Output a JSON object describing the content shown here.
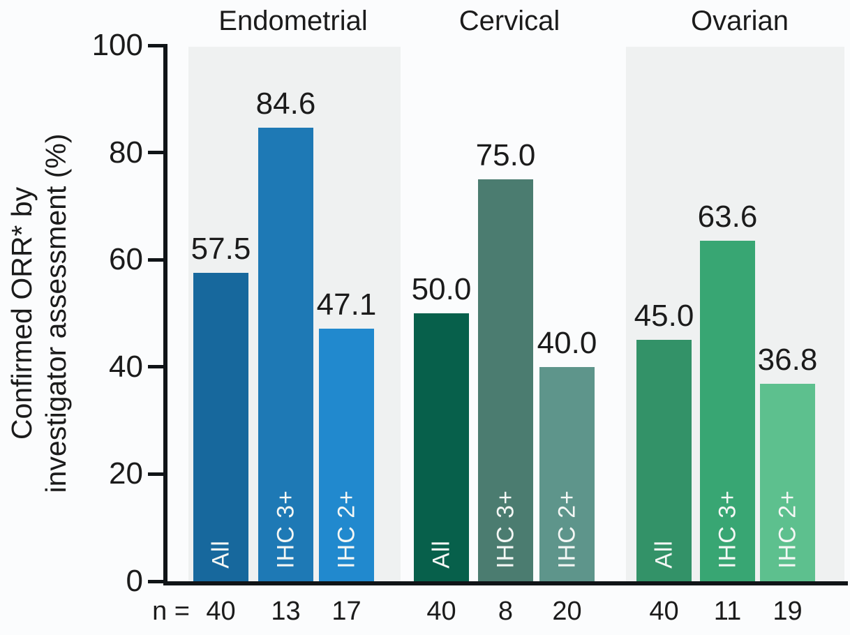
{
  "chart_data": {
    "type": "bar",
    "title": "",
    "ylabel_lines": [
      "Confirmed ORR* by",
      "investigator assessment (%)"
    ],
    "ylabel": "Confirmed ORR* by investigator assessment (%)",
    "ylim": [
      0,
      100
    ],
    "yticks": [
      0,
      20,
      40,
      60,
      80,
      100
    ],
    "grid": false,
    "legend": "none",
    "n_prefix": "n =",
    "bar_label_text_color": "#f4f7f5",
    "axis_color": "#101417",
    "shaded_panel_color": "#eff1f1",
    "groups": [
      {
        "name": "Endometrial",
        "shaded": true,
        "bars": [
          {
            "label": "All",
            "value": 57.5,
            "n": 40,
            "color": "#17689d"
          },
          {
            "label": "IHC 3+",
            "value": 84.6,
            "n": 13,
            "color": "#1e79b5"
          },
          {
            "label": "IHC 2+",
            "value": 47.1,
            "n": 17,
            "color": "#2189ce"
          }
        ]
      },
      {
        "name": "Cervical",
        "shaded": false,
        "bars": [
          {
            "label": "All",
            "value": 50.0,
            "n": 40,
            "color": "#07604b"
          },
          {
            "label": "IHC 3+",
            "value": 75.0,
            "n": 8,
            "color": "#4b7c70"
          },
          {
            "label": "IHC 2+",
            "value": 40.0,
            "n": 20,
            "color": "#5e958b"
          }
        ]
      },
      {
        "name": "Ovarian",
        "shaded": true,
        "bars": [
          {
            "label": "All",
            "value": 45.0,
            "n": 40,
            "color": "#339268"
          },
          {
            "label": "IHC 3+",
            "value": 63.6,
            "n": 11,
            "color": "#38a673"
          },
          {
            "label": "IHC 2+",
            "value": 36.8,
            "n": 19,
            "color": "#5dc08e"
          }
        ]
      }
    ],
    "value_labels": [
      57.5,
      84.6,
      47.1,
      50.0,
      75.0,
      40.0,
      45.0,
      63.6,
      36.8
    ],
    "n_values": [
      40,
      13,
      17,
      40,
      8,
      20,
      40,
      11,
      19
    ]
  }
}
